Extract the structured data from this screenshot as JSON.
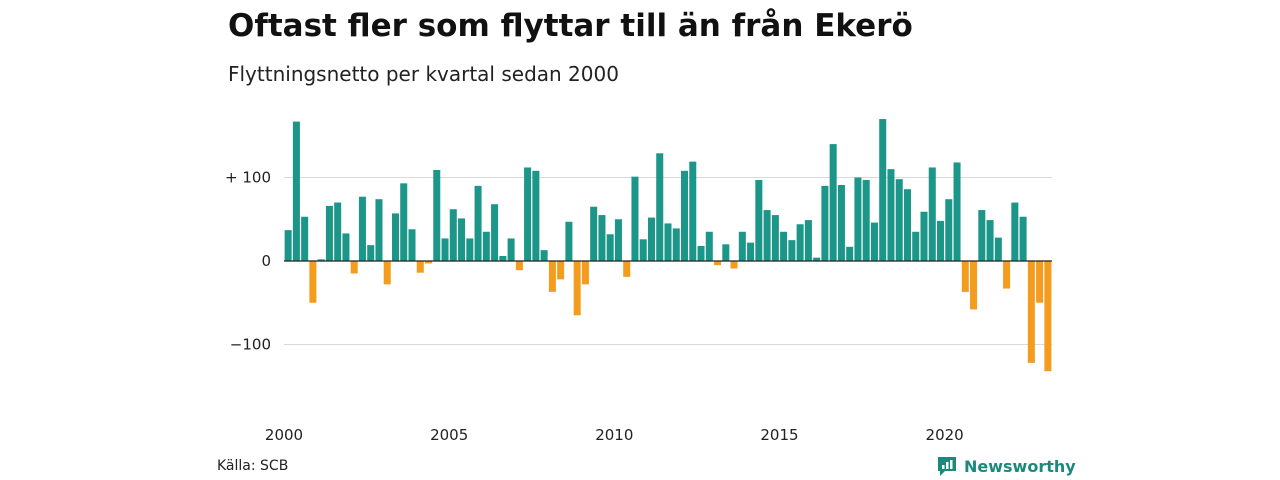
{
  "title": "Oftast fler som flyttar till än från Ekerö",
  "subtitle": "Flyttningsnetto per kvartal sedan 2000",
  "source": "Källa: SCB",
  "brand": "Newsworthy",
  "colors": {
    "positive": "#1b9688",
    "negative": "#f39c1e",
    "grid": "#d9d9d9",
    "zero": "#222222",
    "brand": "#1a8a7c"
  },
  "chart_data": {
    "type": "bar",
    "ylim": [
      -135,
      175
    ],
    "yticks": [
      {
        "value": 100,
        "label": "+ 100"
      },
      {
        "value": 0,
        "label": "0"
      },
      {
        "value": -100,
        "label": "−100"
      }
    ],
    "xticks": [
      {
        "index": 0,
        "label": "2000"
      },
      {
        "index": 20,
        "label": "2005"
      },
      {
        "index": 40,
        "label": "2010"
      },
      {
        "index": 60,
        "label": "2015"
      },
      {
        "index": 80,
        "label": "2020"
      }
    ],
    "grid": true,
    "start": "2000 Q1",
    "values": [
      37,
      167,
      53,
      -50,
      2,
      66,
      70,
      33,
      -15,
      77,
      19,
      74,
      -28,
      57,
      93,
      38,
      -14,
      -3,
      109,
      27,
      62,
      51,
      27,
      90,
      35,
      68,
      6,
      27,
      -11,
      112,
      108,
      13,
      -37,
      -22,
      47,
      -65,
      -28,
      65,
      55,
      32,
      50,
      -19,
      101,
      26,
      52,
      129,
      45,
      39,
      108,
      119,
      18,
      35,
      -5,
      20,
      -9,
      35,
      22,
      97,
      61,
      55,
      35,
      25,
      44,
      49,
      4,
      90,
      140,
      91,
      17,
      100,
      97,
      46,
      170,
      110,
      98,
      86,
      35,
      59,
      112,
      48,
      74,
      118,
      -37,
      -58,
      61,
      49,
      28,
      -33,
      70,
      53,
      -122,
      -50,
      -132
    ]
  }
}
